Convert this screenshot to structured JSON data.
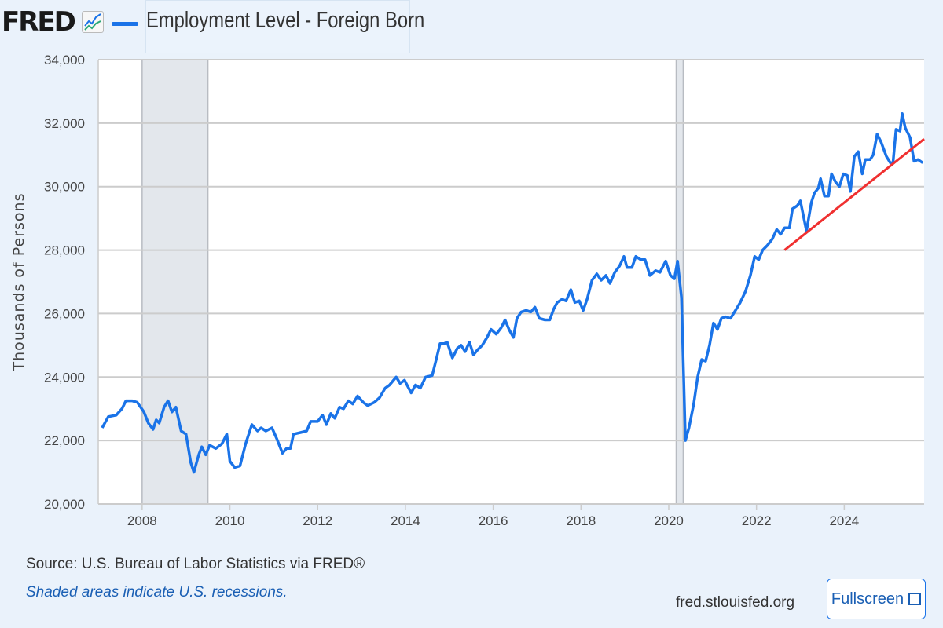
{
  "header": {
    "logo": "FRED",
    "series_title": "Employment Level - Foreign Born"
  },
  "footer": {
    "source": "Source: U.S. Bureau of Labor Statistics via FRED®",
    "note": "Shaded areas indicate U.S. recessions.",
    "site": "fred.stlouisfed.org",
    "fullscreen_label": "Fullscreen"
  },
  "colors": {
    "series": "#1a73e8",
    "trend": "#f03030",
    "recession": "#e3e7ec",
    "grid": "#cccccc"
  },
  "chart_data": {
    "type": "line",
    "title": "Employment Level - Foreign Born",
    "ylabel": "Thousands of Persons",
    "xlabel": "",
    "ylim": [
      20000,
      34000
    ],
    "xlim": [
      2007.0,
      2025.82
    ],
    "yticks": [
      20000,
      22000,
      24000,
      26000,
      28000,
      30000,
      32000,
      34000
    ],
    "ytick_labels": [
      "20,000",
      "22,000",
      "24,000",
      "26,000",
      "28,000",
      "30,000",
      "32,000",
      "34,000"
    ],
    "xticks": [
      2008,
      2010,
      2012,
      2014,
      2016,
      2018,
      2020,
      2022,
      2024
    ],
    "xtick_labels": [
      "2008",
      "2010",
      "2012",
      "2014",
      "2016",
      "2018",
      "2020",
      "2022",
      "2024"
    ],
    "grid": true,
    "recessions": [
      [
        2008.0,
        2009.5
      ],
      [
        2020.17,
        2020.33
      ]
    ],
    "trend_line": {
      "x": [
        2022.64,
        2025.82
      ],
      "y": [
        28000,
        31500
      ]
    },
    "series": [
      {
        "name": "Employment Level - Foreign Born",
        "x": [
          2007.09,
          2007.23,
          2007.41,
          2007.54,
          2007.63,
          2007.77,
          2007.89,
          2008.04,
          2008.14,
          2008.25,
          2008.32,
          2008.39,
          2008.5,
          2008.59,
          2008.68,
          2008.77,
          2008.89,
          2009.0,
          2009.11,
          2009.18,
          2009.29,
          2009.36,
          2009.45,
          2009.54,
          2009.68,
          2009.82,
          2009.93,
          2010.0,
          2010.11,
          2010.23,
          2010.36,
          2010.5,
          2010.63,
          2010.71,
          2010.82,
          2010.96,
          2011.07,
          2011.2,
          2011.29,
          2011.38,
          2011.45,
          2011.61,
          2011.75,
          2011.84,
          2012.0,
          2012.11,
          2012.2,
          2012.3,
          2012.39,
          2012.5,
          2012.59,
          2012.7,
          2012.8,
          2012.91,
          2013.04,
          2013.14,
          2013.29,
          2013.41,
          2013.54,
          2013.64,
          2013.79,
          2013.88,
          2013.98,
          2014.13,
          2014.23,
          2014.34,
          2014.46,
          2014.61,
          2014.71,
          2014.79,
          2014.88,
          2014.95,
          2015.07,
          2015.18,
          2015.27,
          2015.36,
          2015.46,
          2015.55,
          2015.64,
          2015.75,
          2015.86,
          2015.95,
          2016.07,
          2016.18,
          2016.27,
          2016.36,
          2016.46,
          2016.54,
          2016.64,
          2016.75,
          2016.86,
          2016.95,
          2017.05,
          2017.18,
          2017.29,
          2017.38,
          2017.46,
          2017.57,
          2017.66,
          2017.77,
          2017.86,
          2017.96,
          2018.05,
          2018.14,
          2018.25,
          2018.36,
          2018.46,
          2018.57,
          2018.66,
          2018.77,
          2018.88,
          2018.98,
          2019.05,
          2019.16,
          2019.25,
          2019.36,
          2019.46,
          2019.57,
          2019.7,
          2019.8,
          2019.93,
          2020.04,
          2020.13,
          2020.2,
          2020.29,
          2020.38,
          2020.46,
          2020.57,
          2020.66,
          2020.75,
          2020.84,
          2020.93,
          2021.02,
          2021.11,
          2021.2,
          2021.29,
          2021.41,
          2021.52,
          2021.63,
          2021.75,
          2021.86,
          2021.96,
          2022.05,
          2022.14,
          2022.25,
          2022.36,
          2022.46,
          2022.55,
          2022.64,
          2022.75,
          2022.82,
          2022.93,
          2023.0,
          2023.14,
          2023.25,
          2023.32,
          2023.41,
          2023.46,
          2023.55,
          2023.64,
          2023.71,
          2023.8,
          2023.89,
          2023.98,
          2024.07,
          2024.14,
          2024.23,
          2024.32,
          2024.41,
          2024.48,
          2024.59,
          2024.66,
          2024.75,
          2024.84,
          2024.96,
          2025.05,
          2025.11,
          2025.18,
          2025.27,
          2025.32,
          2025.39,
          2025.5,
          2025.59,
          2025.68,
          2025.79
        ],
        "values": [
          22400,
          22750,
          22800,
          23000,
          23250,
          23250,
          23200,
          22900,
          22550,
          22350,
          22650,
          22550,
          23050,
          23250,
          22900,
          23050,
          22300,
          22200,
          21300,
          21000,
          21550,
          21800,
          21550,
          21850,
          21750,
          21900,
          22200,
          21350,
          21150,
          21200,
          21900,
          22500,
          22300,
          22400,
          22300,
          22400,
          22050,
          21600,
          21750,
          21750,
          22200,
          22250,
          22300,
          22600,
          22600,
          22800,
          22500,
          22850,
          22700,
          23050,
          23000,
          23250,
          23150,
          23400,
          23200,
          23100,
          23200,
          23350,
          23650,
          23750,
          24000,
          23800,
          23900,
          23500,
          23750,
          23650,
          24000,
          24050,
          24600,
          25050,
          25050,
          25100,
          24600,
          24900,
          25000,
          24800,
          25100,
          24700,
          24850,
          25000,
          25250,
          25500,
          25350,
          25550,
          25800,
          25500,
          25250,
          25850,
          26050,
          26100,
          26050,
          26200,
          25850,
          25800,
          25800,
          26150,
          26350,
          26450,
          26400,
          26750,
          26350,
          26400,
          26100,
          26450,
          27050,
          27250,
          27050,
          27200,
          26950,
          27300,
          27500,
          27800,
          27450,
          27450,
          27800,
          27700,
          27700,
          27200,
          27350,
          27300,
          27650,
          27200,
          27100,
          27650,
          26500,
          22000,
          22400,
          23150,
          24000,
          24550,
          24500,
          25000,
          25700,
          25500,
          25850,
          25900,
          25850,
          26100,
          26350,
          26700,
          27200,
          27800,
          27700,
          28000,
          28150,
          28350,
          28650,
          28500,
          28700,
          28700,
          29300,
          29400,
          29550,
          28600,
          29500,
          29800,
          29950,
          30250,
          29700,
          29700,
          30400,
          30150,
          30000,
          30400,
          30350,
          29850,
          30950,
          31100,
          30400,
          30850,
          30850,
          31000,
          31650,
          31400,
          30950,
          30750,
          30750,
          31800,
          31750,
          32300,
          31850,
          31550,
          30800,
          30850,
          30750
        ]
      }
    ]
  }
}
